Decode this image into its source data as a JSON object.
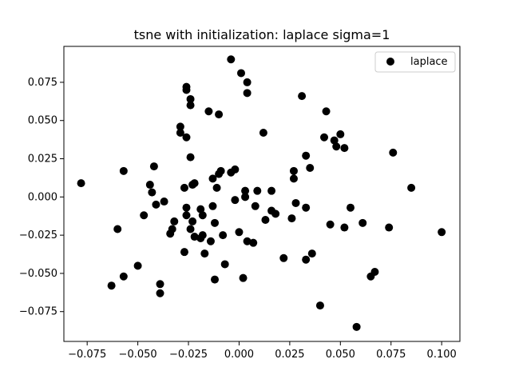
{
  "chart_data": {
    "type": "scatter",
    "title": "tsne with initialization: laplace sigma=1",
    "xlabel": "",
    "ylabel": "",
    "xlim": [
      -0.0865,
      0.109
    ],
    "ylim": [
      -0.0945,
      0.0985
    ],
    "x_ticks": [
      -0.075,
      -0.05,
      -0.025,
      0.0,
      0.025,
      0.05,
      0.075,
      0.1
    ],
    "y_ticks": [
      -0.075,
      -0.05,
      -0.025,
      0.0,
      0.025,
      0.05,
      0.075
    ],
    "x_tick_labels": [
      "−0.075",
      "−0.050",
      "−0.025",
      "0.000",
      "0.025",
      "0.050",
      "0.075",
      "0.100"
    ],
    "y_tick_labels": [
      "−0.075",
      "−0.050",
      "−0.025",
      "0.000",
      "0.025",
      "0.050",
      "0.075"
    ],
    "grid": false,
    "legend_position": "top-right",
    "series": [
      {
        "name": "laplace",
        "color": "#000000",
        "points": [
          [
            -0.078,
            0.009
          ],
          [
            -0.063,
            -0.058
          ],
          [
            -0.06,
            -0.021
          ],
          [
            -0.057,
            0.017
          ],
          [
            -0.057,
            -0.052
          ],
          [
            -0.05,
            -0.045
          ],
          [
            -0.047,
            -0.012
          ],
          [
            -0.044,
            0.008
          ],
          [
            -0.043,
            0.003
          ],
          [
            -0.042,
            0.02
          ],
          [
            -0.041,
            -0.005
          ],
          [
            -0.039,
            -0.057
          ],
          [
            -0.039,
            -0.063
          ],
          [
            -0.037,
            -0.003
          ],
          [
            -0.034,
            -0.024
          ],
          [
            -0.033,
            -0.021
          ],
          [
            -0.032,
            -0.016
          ],
          [
            -0.029,
            0.046
          ],
          [
            -0.029,
            0.042
          ],
          [
            -0.027,
            -0.036
          ],
          [
            -0.027,
            0.006
          ],
          [
            -0.026,
            0.072
          ],
          [
            -0.026,
            0.07
          ],
          [
            -0.026,
            0.039
          ],
          [
            -0.026,
            -0.007
          ],
          [
            -0.026,
            -0.012
          ],
          [
            -0.024,
            0.064
          ],
          [
            -0.024,
            0.06
          ],
          [
            -0.024,
            0.026
          ],
          [
            -0.024,
            -0.021
          ],
          [
            -0.023,
            0.008
          ],
          [
            -0.023,
            -0.016
          ],
          [
            -0.022,
            0.009
          ],
          [
            -0.022,
            -0.026
          ],
          [
            -0.019,
            -0.027
          ],
          [
            -0.019,
            -0.008
          ],
          [
            -0.018,
            -0.025
          ],
          [
            -0.018,
            -0.012
          ],
          [
            -0.017,
            -0.037
          ],
          [
            -0.015,
            0.056
          ],
          [
            -0.014,
            -0.029
          ],
          [
            -0.013,
            0.012
          ],
          [
            -0.013,
            -0.006
          ],
          [
            -0.012,
            -0.054
          ],
          [
            -0.012,
            -0.017
          ],
          [
            -0.011,
            0.006
          ],
          [
            -0.01,
            0.054
          ],
          [
            -0.01,
            0.015
          ],
          [
            -0.009,
            0.017
          ],
          [
            -0.008,
            -0.025
          ],
          [
            -0.007,
            -0.044
          ],
          [
            -0.004,
            0.09
          ],
          [
            -0.004,
            0.016
          ],
          [
            -0.002,
            0.018
          ],
          [
            -0.002,
            -0.002
          ],
          [
            0.0,
            -0.023
          ],
          [
            0.001,
            0.081
          ],
          [
            0.002,
            -0.053
          ],
          [
            0.003,
            0.0
          ],
          [
            0.003,
            0.004
          ],
          [
            0.004,
            0.075
          ],
          [
            0.004,
            0.068
          ],
          [
            0.004,
            -0.029
          ],
          [
            0.007,
            -0.03
          ],
          [
            0.008,
            -0.006
          ],
          [
            0.009,
            0.004
          ],
          [
            0.012,
            0.042
          ],
          [
            0.013,
            -0.015
          ],
          [
            0.016,
            0.004
          ],
          [
            0.016,
            -0.009
          ],
          [
            0.018,
            -0.011
          ],
          [
            0.022,
            -0.04
          ],
          [
            0.026,
            -0.014
          ],
          [
            0.027,
            0.012
          ],
          [
            0.027,
            0.017
          ],
          [
            0.028,
            -0.004
          ],
          [
            0.031,
            0.066
          ],
          [
            0.033,
            0.027
          ],
          [
            0.033,
            -0.007
          ],
          [
            0.033,
            -0.041
          ],
          [
            0.035,
            0.019
          ],
          [
            0.036,
            -0.037
          ],
          [
            0.04,
            -0.071
          ],
          [
            0.042,
            0.039
          ],
          [
            0.043,
            0.056
          ],
          [
            0.045,
            -0.018
          ],
          [
            0.047,
            0.037
          ],
          [
            0.048,
            0.033
          ],
          [
            0.05,
            0.041
          ],
          [
            0.052,
            0.032
          ],
          [
            0.052,
            -0.02
          ],
          [
            0.055,
            -0.007
          ],
          [
            0.058,
            -0.085
          ],
          [
            0.061,
            -0.017
          ],
          [
            0.065,
            -0.052
          ],
          [
            0.067,
            -0.049
          ],
          [
            0.074,
            -0.02
          ],
          [
            0.076,
            0.029
          ],
          [
            0.085,
            0.006
          ],
          [
            0.1,
            -0.023
          ]
        ]
      }
    ]
  }
}
